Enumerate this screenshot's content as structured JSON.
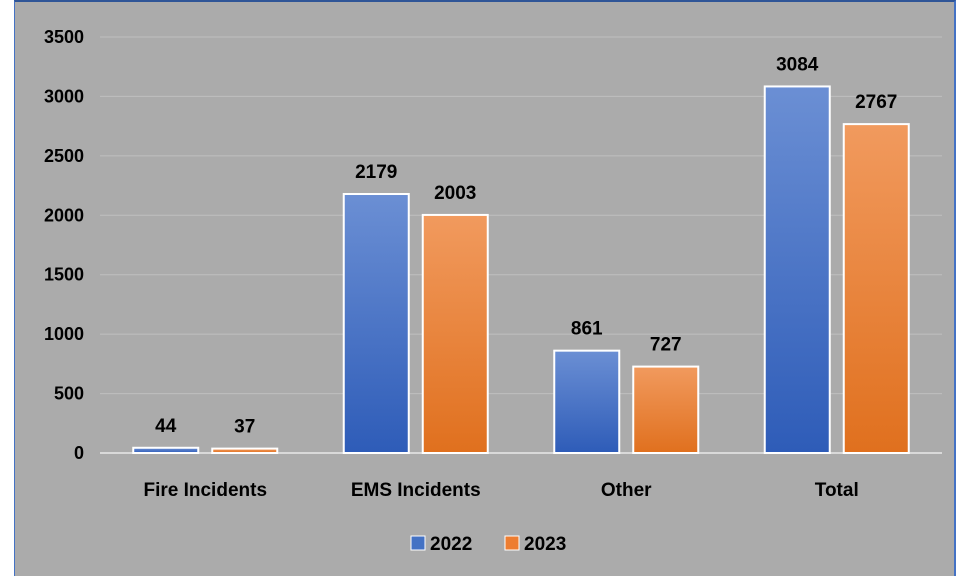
{
  "chart_data": {
    "type": "bar",
    "categories": [
      "Fire Incidents",
      "EMS Incidents",
      "Other",
      "Total"
    ],
    "series": [
      {
        "name": "2022",
        "values": [
          44,
          2179,
          861,
          3084
        ],
        "color": "#4472c4"
      },
      {
        "name": "2023",
        "values": [
          37,
          2003,
          727,
          2767
        ],
        "color": "#ed7d31"
      }
    ],
    "ylim": [
      0,
      3500
    ],
    "yticks": [
      0,
      500,
      1000,
      1500,
      2000,
      2500,
      3000,
      3500
    ],
    "grid": true,
    "legend": "bottom",
    "data_labels": true
  }
}
